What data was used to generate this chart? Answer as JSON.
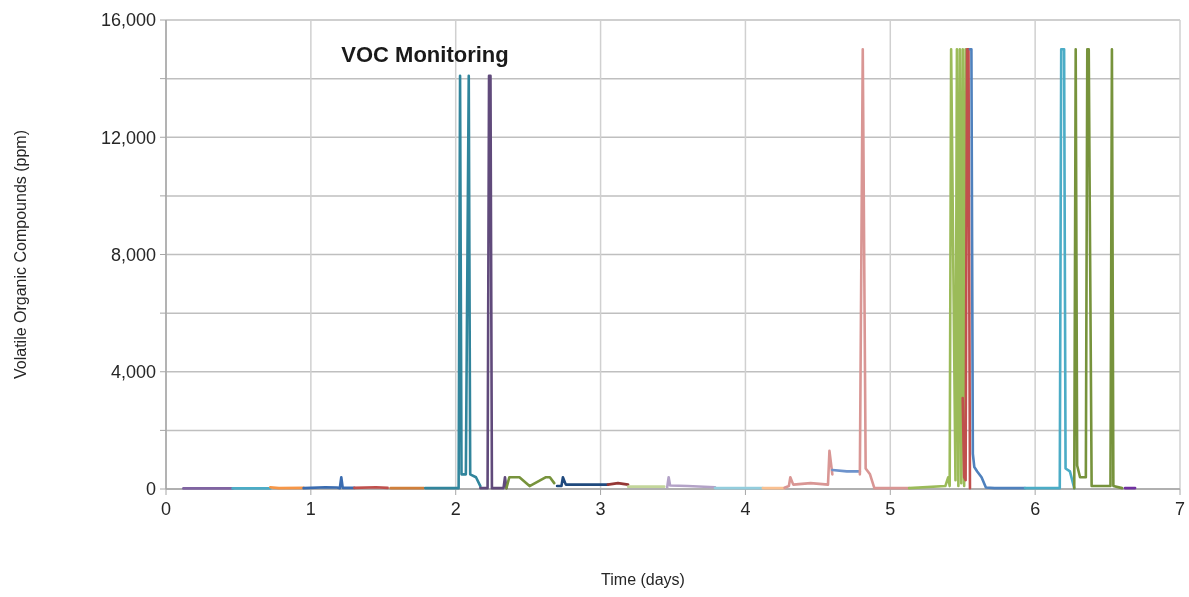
{
  "chart_data": {
    "type": "line",
    "title": "VOC Monitoring",
    "xlabel": "Time (days)",
    "ylabel": "Volatile Organic Compounds (ppm)",
    "xlim": [
      0,
      7
    ],
    "xticks": [
      0,
      1,
      2,
      3,
      4,
      5,
      6,
      7
    ],
    "ylim": [
      0,
      16000
    ],
    "yticks": [
      0,
      {
        "value": 2000,
        "label": null
      },
      {
        "value": 4000,
        "label": "4,000"
      },
      {
        "value": 6000,
        "label": null
      },
      {
        "value": 8000,
        "label": "8,000"
      },
      {
        "value": 10000,
        "label": null
      },
      {
        "value": 12000,
        "label": "12,000"
      },
      {
        "value": 14000,
        "label": null
      },
      {
        "value": 16000,
        "label": "16,000"
      }
    ],
    "grid": true,
    "series": [
      {
        "color": "#8064a2",
        "x": [
          0.12,
          0.46
        ],
        "values": [
          20,
          20
        ]
      },
      {
        "color": "#4bacc6",
        "x": [
          0.46,
          0.72
        ],
        "values": [
          20,
          20
        ]
      },
      {
        "color": "#f79646",
        "x": [
          0.72,
          0.78,
          0.95
        ],
        "values": [
          60,
          30,
          40
        ]
      },
      {
        "color": "#3a6cb0",
        "x": [
          0.95,
          1.1,
          1.18,
          1.2,
          1.21,
          1.22,
          1.3
        ],
        "values": [
          30,
          60,
          50,
          30,
          400,
          40,
          40
        ]
      },
      {
        "color": "#c0504d",
        "x": [
          1.3,
          1.45,
          1.53
        ],
        "values": [
          40,
          60,
          40
        ]
      },
      {
        "color": "#d07f3a",
        "x": [
          1.55,
          1.78
        ],
        "values": [
          30,
          30
        ]
      },
      {
        "color": "#31859c",
        "x": [
          1.79,
          2.02,
          2.03,
          2.04,
          2.07,
          2.09,
          2.1,
          2.14,
          2.17
        ],
        "values": [
          30,
          30,
          14100,
          500,
          500,
          14100,
          500,
          400,
          100
        ]
      },
      {
        "color": "#604a7b",
        "x": [
          2.17,
          2.22,
          2.23,
          2.24,
          2.25,
          2.33,
          2.34,
          2.35
        ],
        "values": [
          30,
          30,
          14100,
          14100,
          30,
          30,
          400,
          30
        ]
      },
      {
        "color": "#77933c",
        "x": [
          2.35,
          2.37,
          2.44,
          2.51,
          2.62,
          2.65,
          2.68
        ],
        "values": [
          30,
          400,
          400,
          100,
          400,
          400,
          200
        ]
      },
      {
        "color": "#1f497d",
        "x": [
          2.7,
          2.73,
          2.74,
          2.76,
          3.05
        ],
        "values": [
          100,
          100,
          400,
          150,
          150
        ]
      },
      {
        "color": "#953735",
        "x": [
          3.05,
          3.12,
          3.19
        ],
        "values": [
          150,
          200,
          150
        ]
      },
      {
        "color": "#c3d69b",
        "x": [
          3.19,
          3.44
        ],
        "values": [
          80,
          80
        ]
      },
      {
        "color": "#b3a2c7",
        "x": [
          3.46,
          3.47,
          3.48,
          3.6,
          3.79
        ],
        "values": [
          60,
          400,
          120,
          100,
          60
        ]
      },
      {
        "color": "#93cddd",
        "x": [
          3.79,
          4.12
        ],
        "values": [
          30,
          30
        ]
      },
      {
        "color": "#fac090",
        "x": [
          4.12,
          4.27
        ],
        "values": [
          30,
          30
        ]
      },
      {
        "color": "#d99694",
        "x": [
          4.27,
          4.3,
          4.31,
          4.33,
          4.45,
          4.57,
          4.58,
          4.6
        ],
        "values": [
          40,
          100,
          400,
          150,
          200,
          150,
          1300,
          500
        ]
      },
      {
        "color": "#6d93cc",
        "x": [
          4.6,
          4.7,
          4.79
        ],
        "values": [
          650,
          600,
          600
        ]
      },
      {
        "color": "#d99694",
        "x": [
          4.79,
          4.81,
          4.83,
          4.86,
          4.89,
          5.13
        ],
        "values": [
          500,
          15000,
          700,
          500,
          30,
          30
        ]
      },
      {
        "color": "#9bbb59",
        "x": [
          5.13,
          5.38,
          5.4,
          5.41,
          5.42,
          5.45,
          5.46,
          5.47,
          5.48,
          5.49,
          5.5,
          5.51,
          5.52
        ],
        "values": [
          30,
          100,
          400,
          100,
          15000,
          300,
          15000,
          100,
          15000,
          200,
          15000,
          100,
          15000
        ]
      },
      {
        "color": "#c0504d",
        "x": [
          5.5,
          5.51,
          5.52,
          5.53,
          5.54,
          5.55
        ],
        "values": [
          3100,
          400,
          300,
          15000,
          15000,
          30
        ]
      },
      {
        "color": "#4f81bd",
        "x": [
          5.55,
          5.56,
          5.57,
          5.58,
          5.6,
          5.63,
          5.66,
          5.72,
          5.93
        ],
        "values": [
          15000,
          15000,
          1200,
          750,
          600,
          400,
          50,
          30,
          30
        ]
      },
      {
        "color": "#4bacc6",
        "x": [
          5.93,
          6.17,
          6.18,
          6.2,
          6.21,
          6.24,
          6.27
        ],
        "values": [
          30,
          30,
          15000,
          15000,
          700,
          600,
          30
        ]
      },
      {
        "color": "#77933c",
        "x": [
          6.27,
          6.28,
          6.29,
          6.31,
          6.35,
          6.36,
          6.37,
          6.39,
          6.45,
          6.52,
          6.53,
          6.54,
          6.6
        ],
        "values": [
          30,
          15000,
          800,
          400,
          400,
          15000,
          15000,
          100,
          100,
          100,
          15000,
          100,
          30
        ]
      },
      {
        "color": "#7030a0",
        "x": [
          6.62,
          6.69
        ],
        "values": [
          30,
          30
        ]
      }
    ]
  }
}
